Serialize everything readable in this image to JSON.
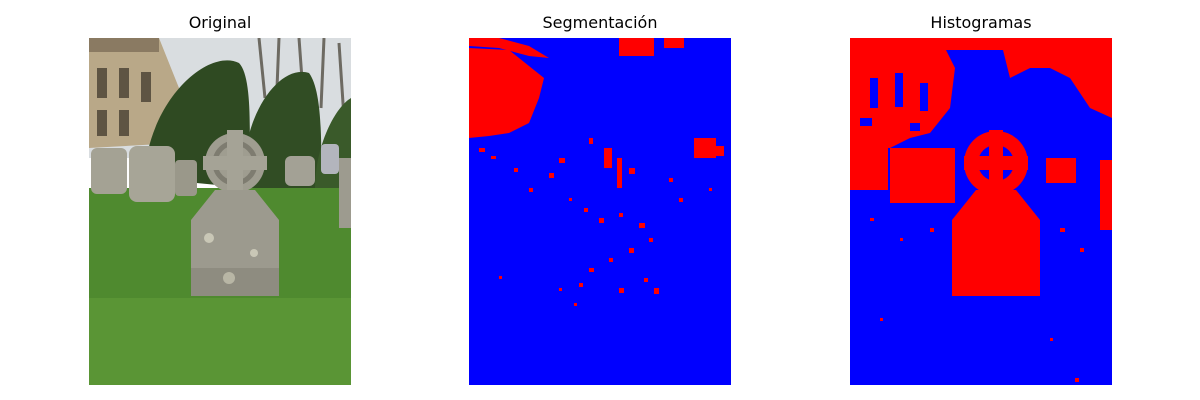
{
  "panels": [
    {
      "title": "Original"
    },
    {
      "title": "Segmentación"
    },
    {
      "title": "Histogramas"
    }
  ],
  "colors": {
    "background": "#ffffff",
    "segment_foreground": "#ff0000",
    "segment_background": "#0000ff",
    "grass": "#4f8a2f",
    "hedge": "#2f4a22",
    "stone": "#9c9a8e",
    "building": "#b9a888",
    "sky": "#d9dde0"
  }
}
